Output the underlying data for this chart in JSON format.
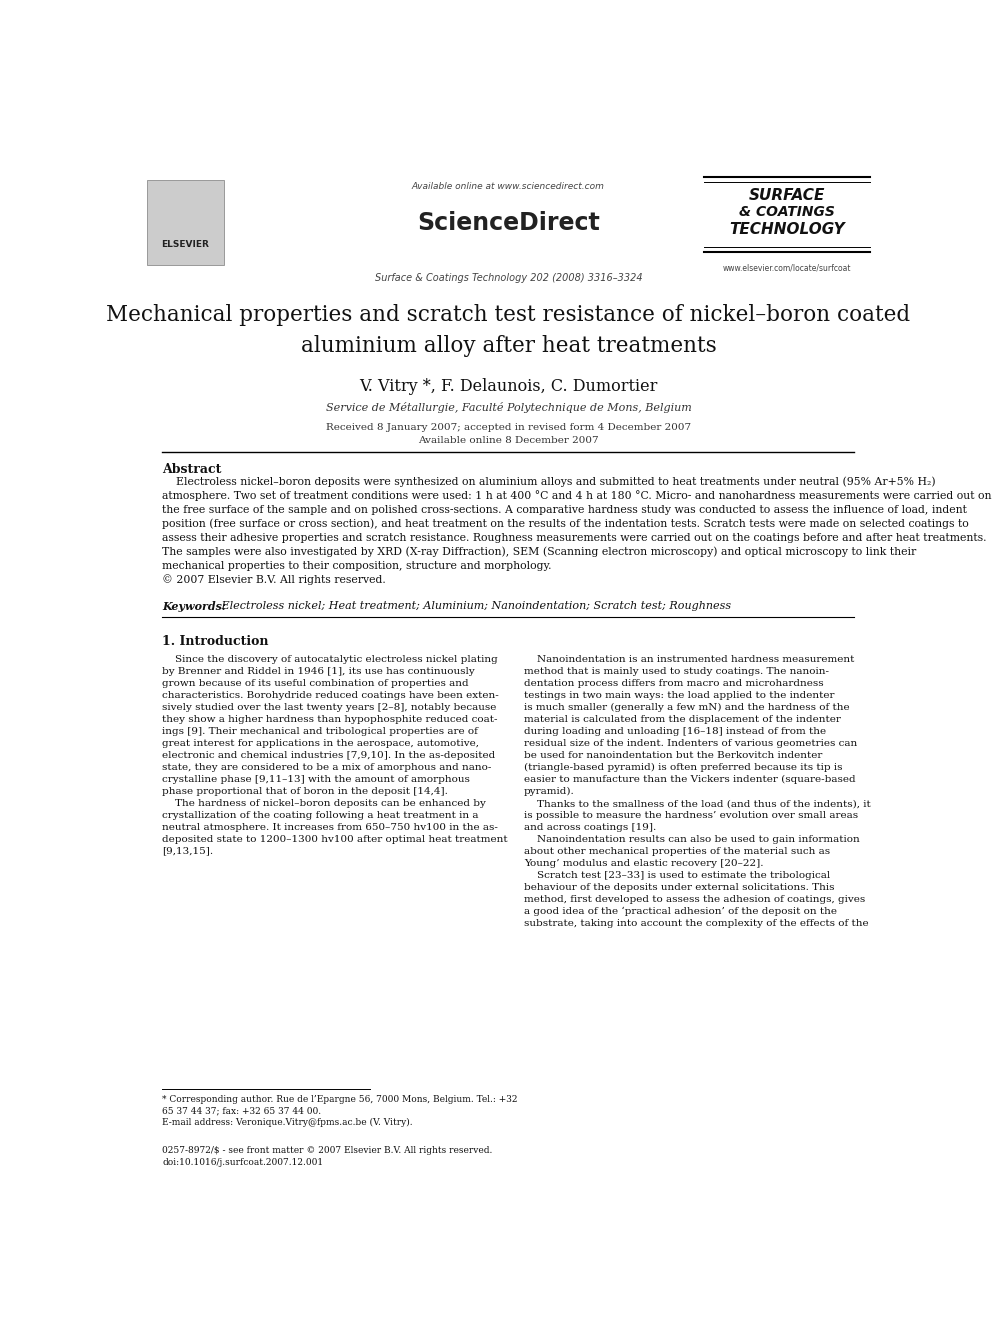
{
  "page_width": 9.92,
  "page_height": 13.23,
  "bg_color": "#ffffff",
  "header": {
    "available_online": "Available online at www.sciencedirect.com",
    "sciencedirect": "ScienceDirect",
    "journal_line": "Surface & Coatings Technology 202 (2008) 3316–3324",
    "elsevier": "ELSEVIER",
    "journal_name_line1": "SURFACE",
    "journal_name_line2": "& COATINGS",
    "journal_name_line3": "TECHNOLOGY",
    "website": "www.elsevier.com/locate/surfcoat"
  },
  "title": "Mechanical properties and scratch test resistance of nickel–boron coated\naluminium alloy after heat treatments",
  "authors": "V. Vitry *, F. Delaunois, C. Dumortier",
  "affiliation": "Service de Métallurgie, Faculté Polytechnique de Mons, Belgium",
  "received": "Received 8 January 2007; accepted in revised form 4 December 2007",
  "available": "Available online 8 December 2007",
  "abstract_heading": "Abstract",
  "abstract_text": "    Electroless nickel–boron deposits were synthesized on aluminium alloys and submitted to heat treatments under neutral (95% Ar+5% H₂)\natmosphere. Two set of treatment conditions were used: 1 h at 400 °C and 4 h at 180 °C. Micro- and nanohardness measurements were carried out on\nthe free surface of the sample and on polished cross-sections. A comparative hardness study was conducted to assess the influence of load, indent\nposition (free surface or cross section), and heat treatment on the results of the indentation tests. Scratch tests were made on selected coatings to\nassess their adhesive properties and scratch resistance. Roughness measurements were carried out on the coatings before and after heat treatments.\nThe samples were also investigated by XRD (X-ray Diffraction), SEM (Scanning electron microscopy) and optical microscopy to link their\nmechanical properties to their composition, structure and morphology.\n© 2007 Elsevier B.V. All rights reserved.",
  "keywords_label": "Keywords:",
  "keywords_text": " Electroless nickel; Heat treatment; Aluminium; Nanoindentation; Scratch test; Roughness",
  "section1_heading": "1. Introduction",
  "intro_col1": "    Since the discovery of autocatalytic electroless nickel plating\nby Brenner and Riddel in 1946 [1], its use has continuously\ngrown because of its useful combination of properties and\ncharacteristics. Borohydride reduced coatings have been exten-\nsively studied over the last twenty years [2–8], notably because\nthey show a higher hardness than hypophosphite reduced coat-\nings [9]. Their mechanical and tribological properties are of\ngreat interest for applications in the aerospace, automotive,\nelectronic and chemical industries [7,9,10]. In the as-deposited\nstate, they are considered to be a mix of amorphous and nano-\ncrystalline phase [9,11–13] with the amount of amorphous\nphase proportional that of boron in the deposit [14,4].\n    The hardness of nickel–boron deposits can be enhanced by\ncrystallization of the coating following a heat treatment in a\nneutral atmosphere. It increases from 650–750 hv100 in the as-\ndeposited state to 1200–1300 hv100 after optimal heat treatment\n[9,13,15].",
  "intro_col2": "    Nanoindentation is an instrumented hardness measurement\nmethod that is mainly used to study coatings. The nanoin-\ndentation process differs from macro and microhardness\ntestings in two main ways: the load applied to the indenter\nis much smaller (generally a few mN) and the hardness of the\nmaterial is calculated from the displacement of the indenter\nduring loading and unloading [16–18] instead of from the\nresidual size of the indent. Indenters of various geometries can\nbe used for nanoindentation but the Berkovitch indenter\n(triangle-based pyramid) is often preferred because its tip is\neasier to manufacture than the Vickers indenter (square-based\npyramid).\n    Thanks to the smallness of the load (and thus of the indents), it\nis possible to measure the hardness’ evolution over small areas\nand across coatings [19].\n    Nanoindentation results can also be used to gain information\nabout other mechanical properties of the material such as\nYoung’ modulus and elastic recovery [20–22].\n    Scratch test [23–33] is used to estimate the tribological\nbehaviour of the deposits under external solicitations. This\nmethod, first developed to assess the adhesion of coatings, gives\na good idea of the ‘practical adhesion’ of the deposit on the\nsubstrate, taking into account the complexity of the effects of the",
  "footnote_star": "* Corresponding author. Rue de l’Epargne 56, 7000 Mons, Belgium. Tel.: +32\n65 37 44 37; fax: +32 65 37 44 00.",
  "footnote_email": "E-mail address: Veronique.Vitry@fpms.ac.be (V. Vitry).",
  "footer_issn": "0257-8972/$ - see front matter © 2007 Elsevier B.V. All rights reserved.",
  "footer_doi": "doi:10.1016/j.surfcoat.2007.12.001"
}
